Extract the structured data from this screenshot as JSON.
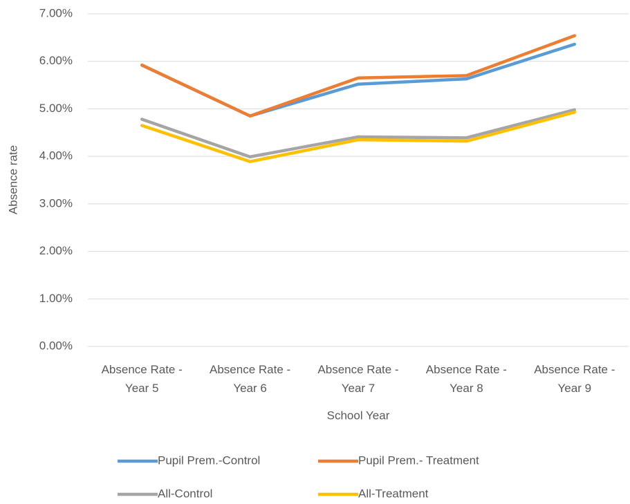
{
  "chart_data": {
    "type": "line",
    "categories": [
      "Absence Rate - Year 5",
      "Absence Rate - Year 6",
      "Absence Rate - Year 7",
      "Absence Rate - Year 8",
      "Absence Rate - Year 9"
    ],
    "x_label": "School Year",
    "y_label": "Absence rate",
    "series": [
      {
        "name": "Pupil Prem.-Control",
        "color": "#5b9bd5",
        "values": [
          5.92,
          4.85,
          5.52,
          5.63,
          6.36
        ]
      },
      {
        "name": "Pupil Prem.- Treatment",
        "color": "#ed7d31",
        "values": [
          5.92,
          4.85,
          5.65,
          5.7,
          6.54
        ]
      },
      {
        "name": "All-Control",
        "color": "#a5a5a5",
        "values": [
          4.78,
          3.99,
          4.41,
          4.39,
          4.98
        ]
      },
      {
        "name": "All-Treatment",
        "color": "#ffc000",
        "values": [
          4.65,
          3.89,
          4.35,
          4.32,
          4.93
        ]
      }
    ],
    "ylim": [
      0,
      7
    ],
    "yticks": [
      {
        "value": 0,
        "label": "0.00%"
      },
      {
        "value": 1,
        "label": "1.00%"
      },
      {
        "value": 2,
        "label": "2.00%"
      },
      {
        "value": 3,
        "label": "3.00%"
      },
      {
        "value": 4,
        "label": "4.00%"
      },
      {
        "value": 5,
        "label": "5.00%"
      },
      {
        "value": 6,
        "label": "6.00%"
      },
      {
        "value": 7,
        "label": "7.00%"
      }
    ],
    "grid": true,
    "legend": "bottom"
  }
}
